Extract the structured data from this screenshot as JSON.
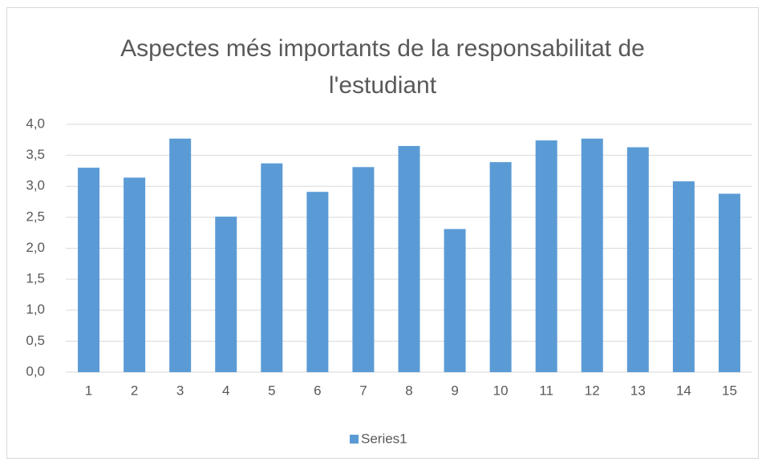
{
  "chart_data": {
    "type": "bar",
    "title": "Aspectes més importants de la responsabilitat de l'estudiant",
    "categories": [
      "1",
      "2",
      "3",
      "4",
      "5",
      "6",
      "7",
      "8",
      "9",
      "10",
      "11",
      "12",
      "13",
      "14",
      "15"
    ],
    "series": [
      {
        "name": "Series1",
        "color": "#5b9bd5",
        "values": [
          3.3,
          3.14,
          3.77,
          2.51,
          3.37,
          2.91,
          3.31,
          3.65,
          2.31,
          3.39,
          3.74,
          3.77,
          3.63,
          3.08,
          2.88
        ]
      }
    ],
    "ylim": [
      0,
      4
    ],
    "yticks": [
      {
        "value": 0,
        "label": "0,0"
      },
      {
        "value": 0.5,
        "label": "0,5"
      },
      {
        "value": 1,
        "label": "1,0"
      },
      {
        "value": 1.5,
        "label": "1,5"
      },
      {
        "value": 2,
        "label": "2,0"
      },
      {
        "value": 2.5,
        "label": "2,5"
      },
      {
        "value": 3,
        "label": "3,0"
      },
      {
        "value": 3.5,
        "label": "3,5"
      },
      {
        "value": 4,
        "label": "4,0"
      }
    ],
    "grid": true,
    "legend": "bottom"
  }
}
